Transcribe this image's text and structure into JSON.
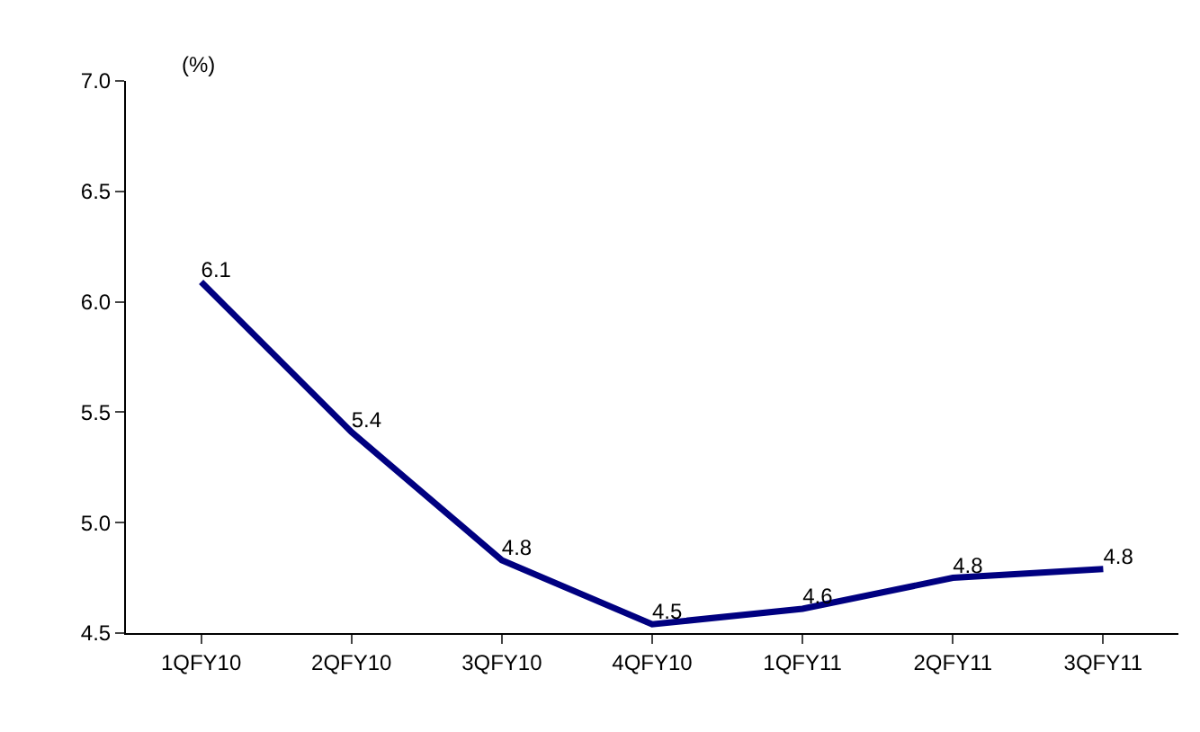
{
  "chart_data": {
    "type": "line",
    "categories": [
      "1QFY10",
      "2QFY10",
      "3QFY10",
      "4QFY10",
      "1QFY11",
      "2QFY11",
      "3QFY11"
    ],
    "series": [
      {
        "color": "#000080",
        "values": [
          6.09,
          5.41,
          4.83,
          4.54,
          4.61,
          4.75,
          4.79
        ],
        "value_labels": [
          "6.1",
          "5.4",
          "4.8",
          "4.5",
          "4.6",
          "4.8",
          "4.8"
        ]
      }
    ],
    "annotations": [
      "(%)"
    ],
    "ylim": [
      4.5,
      7.0
    ],
    "yticks": [
      {
        "value": 4.5,
        "label": "4.5"
      },
      {
        "value": 5.0,
        "label": "5.0"
      },
      {
        "value": 5.5,
        "label": "5.5"
      },
      {
        "value": 6.0,
        "label": "6.0"
      },
      {
        "value": 6.5,
        "label": "6.5"
      },
      {
        "value": 7.0,
        "label": "7.0"
      }
    ],
    "legend": false,
    "marker": "none",
    "line_style": "solid"
  }
}
